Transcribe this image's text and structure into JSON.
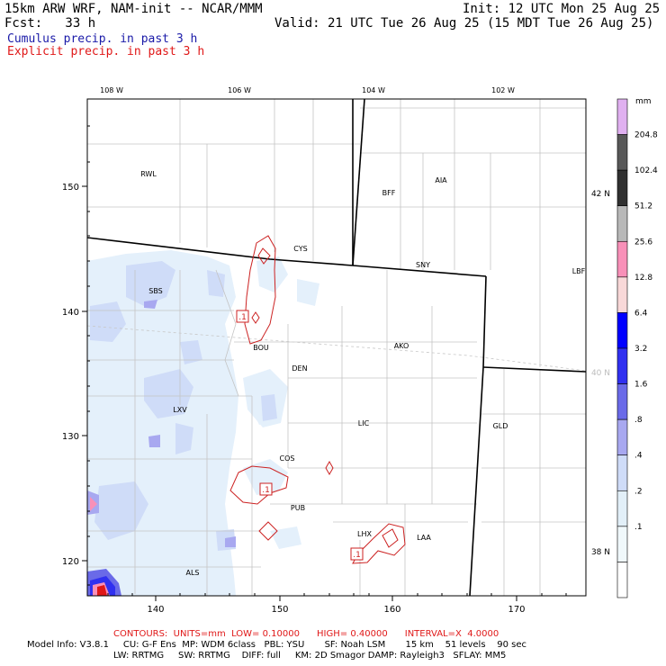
{
  "header": {
    "model": "15km ARW WRF, NAM-init -- NCAR/MMM",
    "init": "Init: 12 UTC Mon 25 Aug 25",
    "fcst": "Fcst:   33 h",
    "valid": "Valid: 21 UTC Tue 26 Aug 25 (15 MDT Tue 26 Aug 25)",
    "cumulus_label": "Cumulus precip. in past 3 h",
    "explicit_label": "Explicit precip. in past 3 h"
  },
  "colors": {
    "cumulus": "#1a1aa8",
    "explicit": "#e01818",
    "contour": "#cc2222"
  },
  "map": {
    "lon_labels": [
      "108 W",
      "106 W",
      "104 W",
      "102 W"
    ],
    "lat_labels": [
      "42 N",
      "40 N",
      "38 N"
    ],
    "x_ticks": [
      "140",
      "150",
      "160",
      "170"
    ],
    "y_ticks": [
      "150",
      "140",
      "130",
      "120"
    ],
    "stations": [
      "RWL",
      "BFF",
      "AIA",
      "CYS",
      "SNY",
      "LBF",
      "SBS",
      "BOU",
      "AKO",
      "DEN",
      "LXV",
      "LIC",
      "GLD",
      "COS",
      "PUB",
      "LHX",
      "LAA",
      "ALS"
    ],
    "contour_tags": [
      ".1",
      ".1",
      ".1"
    ]
  },
  "colorbar": {
    "unit": "mm",
    "levels": [
      "204.8",
      "102.4",
      "51.2",
      "25.6",
      "12.8",
      "6.4",
      "3.2",
      "1.6",
      ".8",
      ".4",
      ".2",
      ".1"
    ],
    "colors": [
      "#e0b0f0",
      "#585858",
      "#303030",
      "#b8b8b8",
      "#f890b8",
      "#f8d8d8",
      "#0000ff",
      "#3030f0",
      "#6a6ae8",
      "#a8a8f0",
      "#cfdcf8",
      "#e2eff8",
      "#f0f8fb",
      "#ffffff"
    ]
  },
  "footer": {
    "contours": "CONTOURS:  UNITS=mm  LOW= 0.10000      HIGH= 0.40000      INTERVAL=X  4.0000",
    "info1": "Model Info: V3.8.1     CU: G-F Ens  MP: WDM 6class   PBL: YSU       SF: Noah LSM       15 km    51 levels    90 sec",
    "info2": "LW: RRTMG     SW: RRTMG    DIFF: full     KM: 2D Smagor DAMP: Rayleigh3   SFLAY: MM5"
  }
}
